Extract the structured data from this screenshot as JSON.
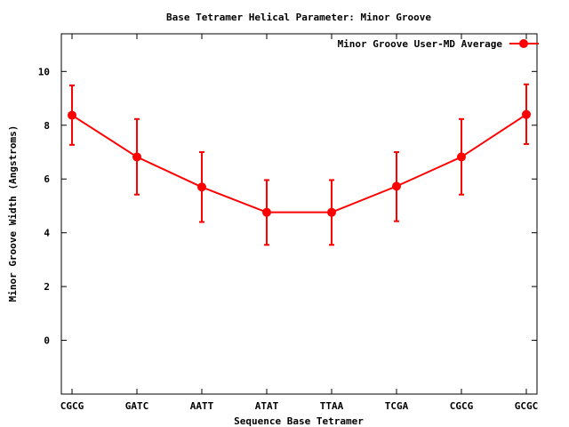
{
  "chart_data": {
    "type": "line",
    "title": "Base Tetramer Helical Parameter: Minor Groove",
    "xlabel": "Sequence Base Tetramer",
    "ylabel": "Minor Groove Width (Angstroms)",
    "categories": [
      "CGCG",
      "GATC",
      "AATT",
      "ATAT",
      "TTAA",
      "TCGA",
      "CGCG",
      "GCGC"
    ],
    "ylim": [
      -2,
      11.4
    ],
    "yticks": [
      0,
      2,
      4,
      6,
      8,
      10
    ],
    "legend_position": "top-right",
    "series": [
      {
        "name": "Minor Groove User-MD Average",
        "color": "#ff0000",
        "values": [
          8.37,
          6.82,
          5.7,
          4.76,
          4.76,
          5.73,
          6.82,
          8.4
        ],
        "error_low": [
          7.27,
          5.42,
          4.4,
          3.55,
          3.55,
          4.43,
          5.42,
          7.3
        ],
        "error_high": [
          9.48,
          8.23,
          7.0,
          5.96,
          5.96,
          7.0,
          8.23,
          9.52
        ]
      }
    ]
  }
}
